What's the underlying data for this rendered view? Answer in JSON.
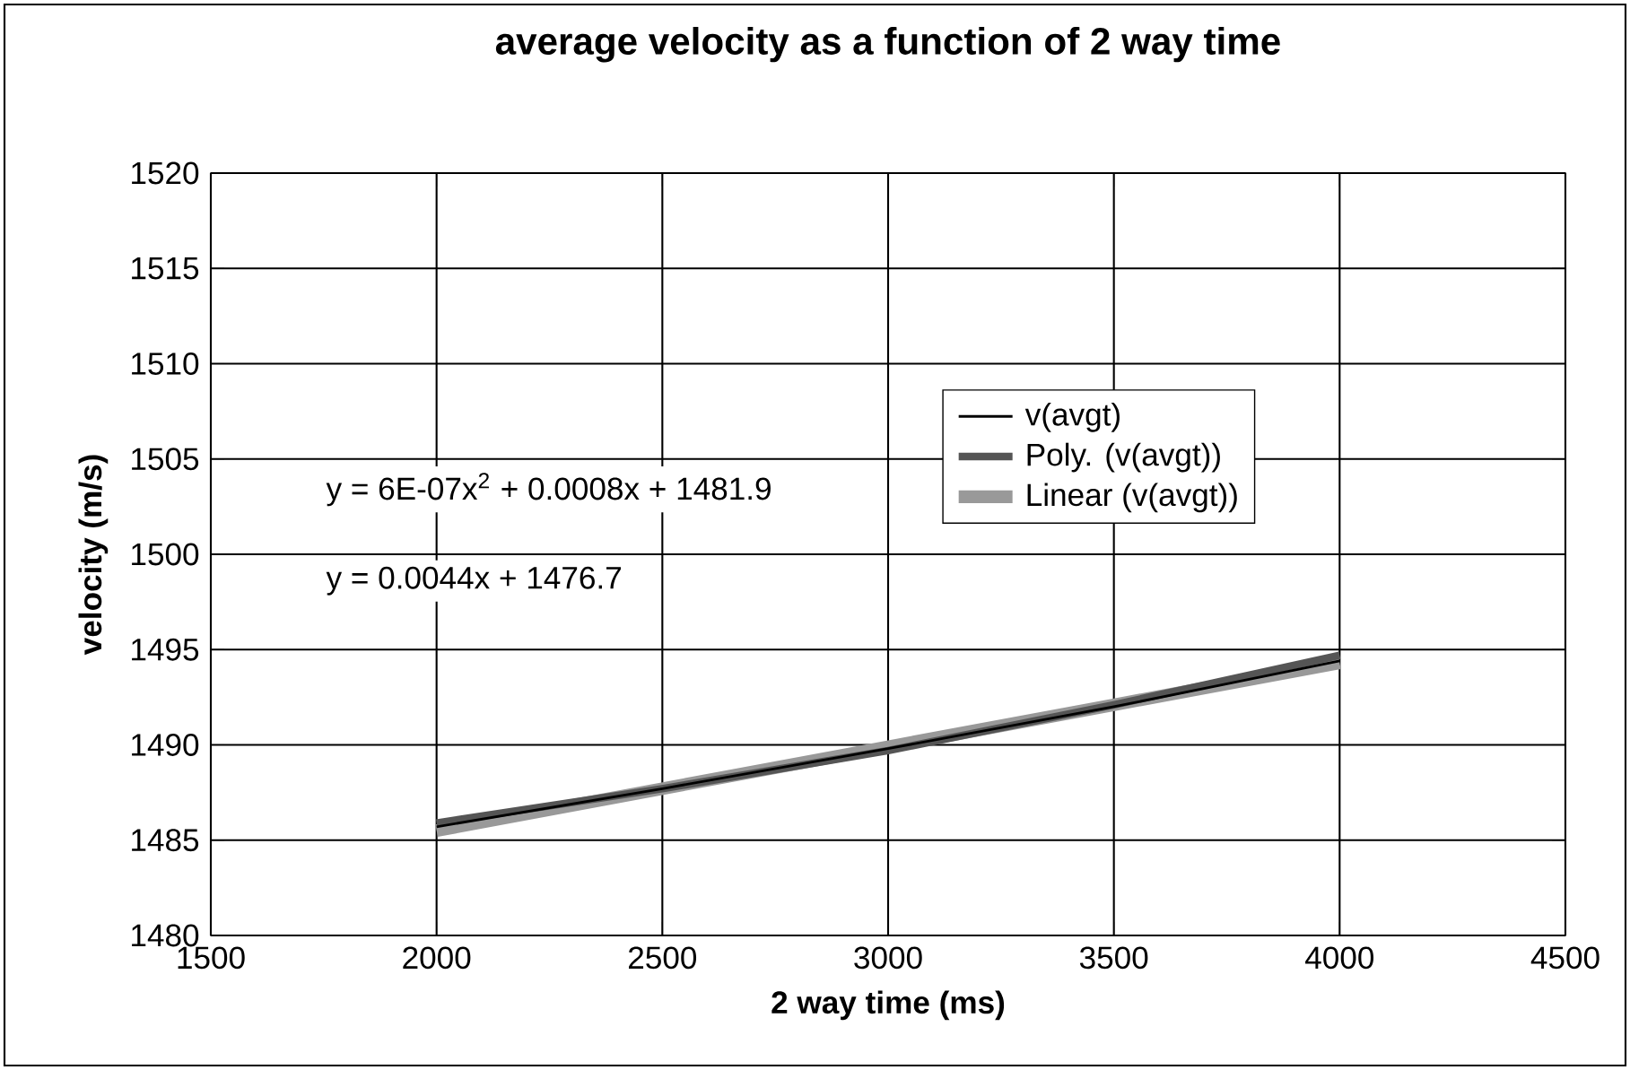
{
  "chart_data": {
    "type": "line",
    "title": "average velocity as a function of 2 way time",
    "xlabel": "2 way time (ms)",
    "ylabel": "velocity (m/s)",
    "x": [
      2000,
      2500,
      3000,
      3500,
      4000
    ],
    "series": [
      {
        "name": "v(avgt)",
        "color": "#000000",
        "values": [
          1485.7,
          1487.7,
          1489.8,
          1492.0,
          1494.4
        ]
      },
      {
        "name": "Poly. (v(avgt))",
        "color": "#555555",
        "values": [
          1485.9,
          1487.7,
          1489.7,
          1492.1,
          1494.7
        ]
      },
      {
        "name": "Linear (v(avgt))",
        "color": "#999999",
        "values": [
          1485.5,
          1487.7,
          1489.9,
          1492.1,
          1494.3
        ]
      }
    ],
    "xlim": [
      1500,
      4500
    ],
    "xticks": [
      1500,
      2000,
      2500,
      3000,
      3500,
      4000,
      4500
    ],
    "ylim": [
      1480,
      1520
    ],
    "yticks": [
      1480,
      1485,
      1490,
      1495,
      1500,
      1505,
      1510,
      1515,
      1520
    ],
    "annotations": [
      "y = 6E-07x$^{2}$ + 0.0008x + 1481.9",
      "y = 0.0044x + 1476.7"
    ],
    "grid": true,
    "legend": "right",
    "marker": "none"
  }
}
